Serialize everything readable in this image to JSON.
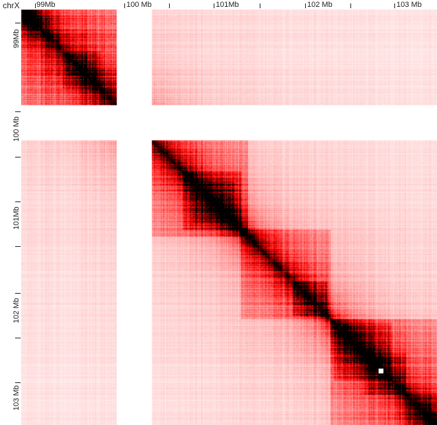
{
  "chromosome": "chrX",
  "x_axis_labels": [
    "99Mb",
    "100 Mb",
    "101Mb",
    "102 Mb",
    "103 Mb"
  ],
  "y_axis_labels": [
    "99Mb",
    "100 Mb",
    "101Mb",
    "102 Mb",
    "103 Mb"
  ],
  "colors": {
    "high": "#000000",
    "mid": "#d40000",
    "low": "#ffffff",
    "frame": "#000000"
  }
}
